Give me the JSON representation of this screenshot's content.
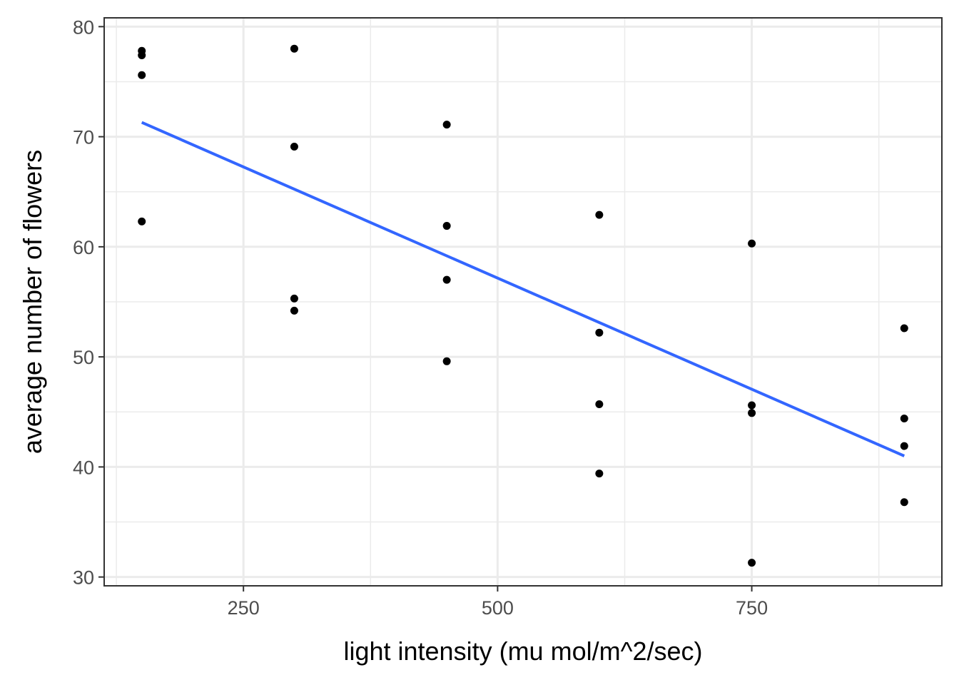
{
  "chart_data": {
    "type": "scatter",
    "xlabel": "light intensity (mu mol/m^2/sec)",
    "ylabel": "average number of flowers",
    "xlim": [
      113,
      937
    ],
    "ylim": [
      29.2,
      80.8
    ],
    "x_ticks": [
      250,
      500,
      750
    ],
    "y_ticks": [
      30,
      40,
      50,
      60,
      70,
      80
    ],
    "x_minor_ticks": [
      125,
      375,
      625,
      875
    ],
    "y_minor_ticks": [
      35,
      45,
      55,
      65,
      75
    ],
    "grid": true,
    "series": [
      {
        "type": "scatter",
        "color": "#000000",
        "points": [
          {
            "x": 150,
            "y": 77.8
          },
          {
            "x": 150,
            "y": 77.4
          },
          {
            "x": 150,
            "y": 75.6
          },
          {
            "x": 150,
            "y": 62.3
          },
          {
            "x": 300,
            "y": 78.0
          },
          {
            "x": 300,
            "y": 69.1
          },
          {
            "x": 300,
            "y": 55.3
          },
          {
            "x": 300,
            "y": 54.2
          },
          {
            "x": 450,
            "y": 71.1
          },
          {
            "x": 450,
            "y": 61.9
          },
          {
            "x": 450,
            "y": 57.0
          },
          {
            "x": 450,
            "y": 49.6
          },
          {
            "x": 600,
            "y": 62.9
          },
          {
            "x": 600,
            "y": 52.2
          },
          {
            "x": 600,
            "y": 45.7
          },
          {
            "x": 600,
            "y": 39.4
          },
          {
            "x": 750,
            "y": 60.3
          },
          {
            "x": 750,
            "y": 45.6
          },
          {
            "x": 750,
            "y": 44.9
          },
          {
            "x": 750,
            "y": 31.3
          },
          {
            "x": 900,
            "y": 52.6
          },
          {
            "x": 900,
            "y": 44.4
          },
          {
            "x": 900,
            "y": 41.9
          },
          {
            "x": 900,
            "y": 36.8
          }
        ]
      },
      {
        "type": "line",
        "color": "#3366FF",
        "points": [
          {
            "x": 150,
            "y": 71.3
          },
          {
            "x": 900,
            "y": 41.0
          }
        ]
      }
    ]
  }
}
